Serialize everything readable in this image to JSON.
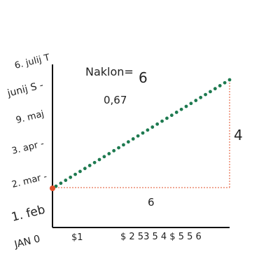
{
  "title": "Naklon=",
  "title_value": "6",
  "slope": "0,67",
  "rise": "4",
  "run": "6",
  "y_labels": [
    "6. julij T",
    "junij S -",
    "9. maj",
    "3. apr -",
    "2. mar -",
    "1. feb",
    "JAN 0"
  ],
  "x_labels": [
    "$1",
    "$ 2 53 5 4 $ 5 5 6"
  ]
}
